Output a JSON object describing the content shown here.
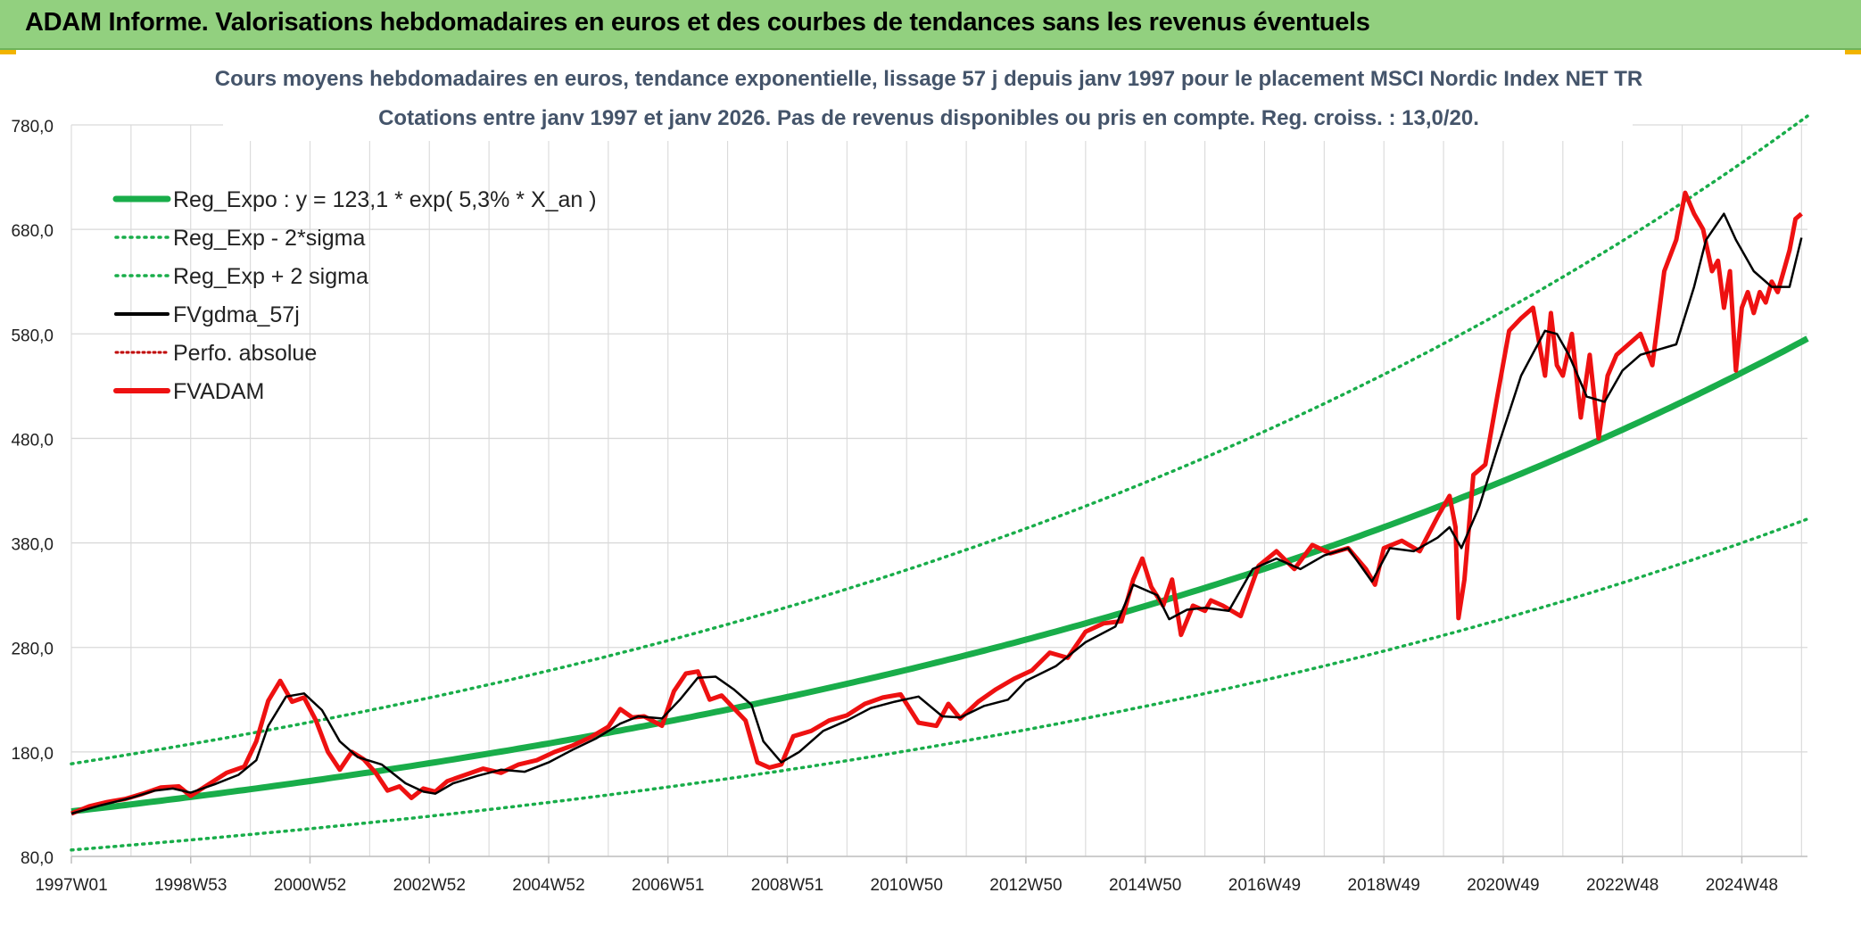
{
  "banner": {
    "title": "ADAM Informe. Valorisations hebdomadaires en euros et des courbes de tendances sans les revenus éventuels"
  },
  "colors": {
    "banner_bg": "#92d07f",
    "reg": "#19ad4a",
    "dev": "#19ad4a",
    "gdma": "#000000",
    "fvadam": "#ee1111",
    "perfo": "#c00000",
    "grid": "#d9d9d9",
    "axis_text": "#1f1f1f",
    "title_text": "#44546a"
  },
  "chart_data": {
    "type": "line",
    "title": "Cours moyens hebdomadaires en euros, tendance exponentielle, lissage 57 j depuis janv 1997 pour le placement MSCI Nordic Index NET TR",
    "subtitle": "Cotations entre janv 1997 et janv 2026. Pas de revenus disponibles ou pris en compte. Reg. croiss. : 13,0/20.",
    "xlabel": "",
    "ylabel": "",
    "ylim": [
      80,
      780
    ],
    "yticks": [
      "780,0",
      "680,0",
      "580,0",
      "480,0",
      "380,0",
      "280,0",
      "180,0",
      "80,0"
    ],
    "xlim": [
      1997.0,
      2026.1
    ],
    "xticks": [
      "1997W01",
      "1998W53",
      "2000W52",
      "2002W52",
      "2004W52",
      "2006W51",
      "2008W51",
      "2010W50",
      "2012W50",
      "2014W50",
      "2016W49",
      "2018W49",
      "2020W49",
      "2022W48",
      "2024W48"
    ],
    "grid": true,
    "legend_position": "top-left",
    "regression": {
      "a": 123.1,
      "rate": 0.053,
      "lower_factor": 0.7,
      "upper_factor": 1.37
    },
    "series": [
      {
        "name": "Reg_Expo : y = 123,1 * exp( 5,3% *  X_an )",
        "style": "solid-thick-green"
      },
      {
        "name": "Reg_Exp - 2*sigma",
        "style": "dotted-green"
      },
      {
        "name": "Reg_Exp + 2 sigma",
        "style": "dotted-green"
      },
      {
        "name": "FVgdma_57j",
        "style": "solid-black",
        "x": [
          1997.0,
          1997.5,
          1998.0,
          1998.4,
          1998.7,
          1999.0,
          1999.4,
          1999.8,
          2000.1,
          2000.3,
          2000.6,
          2000.9,
          2001.2,
          2001.5,
          2001.8,
          2002.2,
          2002.6,
          2002.9,
          2003.1,
          2003.4,
          2003.8,
          2004.2,
          2004.6,
          2005.0,
          2005.4,
          2005.8,
          2006.2,
          2006.5,
          2006.9,
          2007.2,
          2007.5,
          2007.8,
          2008.1,
          2008.4,
          2008.6,
          2008.9,
          2009.2,
          2009.6,
          2010.0,
          2010.4,
          2010.8,
          2011.2,
          2011.6,
          2011.9,
          2012.3,
          2012.7,
          2013.0,
          2013.5,
          2014.0,
          2014.5,
          2014.8,
          2015.2,
          2015.4,
          2015.7,
          2016.0,
          2016.4,
          2016.8,
          2017.2,
          2017.6,
          2018.0,
          2018.4,
          2018.8,
          2019.1,
          2019.5,
          2019.9,
          2020.1,
          2020.3,
          2020.6,
          2020.9,
          2021.3,
          2021.7,
          2021.9,
          2022.1,
          2022.4,
          2022.7,
          2023.0,
          2023.3,
          2023.6,
          2023.9,
          2024.2,
          2024.4,
          2024.7,
          2024.9,
          2025.2,
          2025.5,
          2025.8,
          2026.0
        ],
        "y": [
          121,
          129,
          136,
          143,
          145,
          141,
          149,
          158,
          172,
          205,
          233,
          236,
          220,
          190,
          175,
          168,
          150,
          142,
          140,
          150,
          157,
          163,
          161,
          170,
          182,
          193,
          207,
          214,
          212,
          230,
          251,
          252,
          240,
          225,
          190,
          170,
          180,
          200,
          210,
          222,
          228,
          233,
          214,
          213,
          224,
          230,
          248,
          262,
          285,
          300,
          340,
          330,
          307,
          316,
          318,
          315,
          355,
          365,
          355,
          368,
          375,
          343,
          375,
          372,
          385,
          395,
          375,
          415,
          470,
          540,
          583,
          580,
          560,
          520,
          515,
          545,
          560,
          565,
          570,
          625,
          670,
          695,
          670,
          640,
          625,
          625,
          672
        ]
      },
      {
        "name": "Perfo. absolue",
        "style": "dotted-darkred"
      },
      {
        "name": "FVADAM",
        "style": "solid-thick-red",
        "x": [
          1997.0,
          1997.3,
          1997.6,
          1997.9,
          1998.2,
          1998.5,
          1998.8,
          1999.0,
          1999.3,
          1999.6,
          1999.9,
          2000.1,
          2000.3,
          2000.5,
          2000.7,
          2000.9,
          2001.1,
          2001.3,
          2001.5,
          2001.7,
          2001.9,
          2002.1,
          2002.3,
          2002.5,
          2002.7,
          2002.9,
          2003.1,
          2003.3,
          2003.6,
          2003.9,
          2004.2,
          2004.5,
          2004.8,
          2005.1,
          2005.4,
          2005.7,
          2006.0,
          2006.2,
          2006.4,
          2006.6,
          2006.9,
          2007.1,
          2007.3,
          2007.5,
          2007.7,
          2007.9,
          2008.1,
          2008.3,
          2008.5,
          2008.7,
          2008.9,
          2009.1,
          2009.4,
          2009.7,
          2010.0,
          2010.3,
          2010.6,
          2010.9,
          2011.2,
          2011.5,
          2011.7,
          2011.9,
          2012.2,
          2012.5,
          2012.8,
          2013.1,
          2013.4,
          2013.7,
          2014.0,
          2014.3,
          2014.6,
          2014.8,
          2014.95,
          2015.1,
          2015.3,
          2015.45,
          2015.6,
          2015.8,
          2016.0,
          2016.1,
          2016.3,
          2016.6,
          2016.9,
          2017.2,
          2017.5,
          2017.8,
          2018.1,
          2018.4,
          2018.7,
          2018.85,
          2019.0,
          2019.3,
          2019.6,
          2019.9,
          2020.1,
          2020.2,
          2020.25,
          2020.35,
          2020.5,
          2020.7,
          2020.9,
          2021.1,
          2021.3,
          2021.5,
          2021.7,
          2021.8,
          2021.9,
          2022.0,
          2022.15,
          2022.3,
          2022.45,
          2022.6,
          2022.75,
          2022.9,
          2023.1,
          2023.3,
          2023.5,
          2023.7,
          2023.9,
          2024.05,
          2024.2,
          2024.35,
          2024.5,
          2024.6,
          2024.7,
          2024.8,
          2024.9,
          2025.0,
          2025.1,
          2025.2,
          2025.3,
          2025.4,
          2025.5,
          2025.6,
          2025.7,
          2025.8,
          2025.9,
          2026.0
        ],
        "y": [
          121,
          128,
          132,
          135,
          140,
          146,
          147,
          138,
          149,
          160,
          166,
          190,
          229,
          248,
          228,
          232,
          210,
          180,
          163,
          180,
          173,
          160,
          143,
          147,
          136,
          145,
          142,
          152,
          158,
          164,
          160,
          168,
          172,
          180,
          186,
          194,
          204,
          221,
          213,
          214,
          205,
          238,
          255,
          257,
          230,
          234,
          222,
          210,
          170,
          165,
          168,
          195,
          200,
          210,
          215,
          226,
          232,
          235,
          208,
          205,
          226,
          212,
          228,
          240,
          250,
          258,
          275,
          270,
          295,
          303,
          305,
          345,
          365,
          338,
          320,
          345,
          292,
          320,
          315,
          325,
          320,
          310,
          358,
          372,
          355,
          378,
          370,
          375,
          355,
          340,
          375,
          382,
          372,
          405,
          425,
          395,
          308,
          345,
          445,
          455,
          520,
          583,
          595,
          605,
          540,
          600,
          550,
          540,
          580,
          500,
          560,
          480,
          540,
          560,
          570,
          580,
          550,
          640,
          670,
          715,
          695,
          680,
          640,
          650,
          605,
          640,
          545,
          605,
          620,
          600,
          620,
          610,
          630,
          620,
          640,
          660,
          690,
          695
        ]
      }
    ]
  }
}
